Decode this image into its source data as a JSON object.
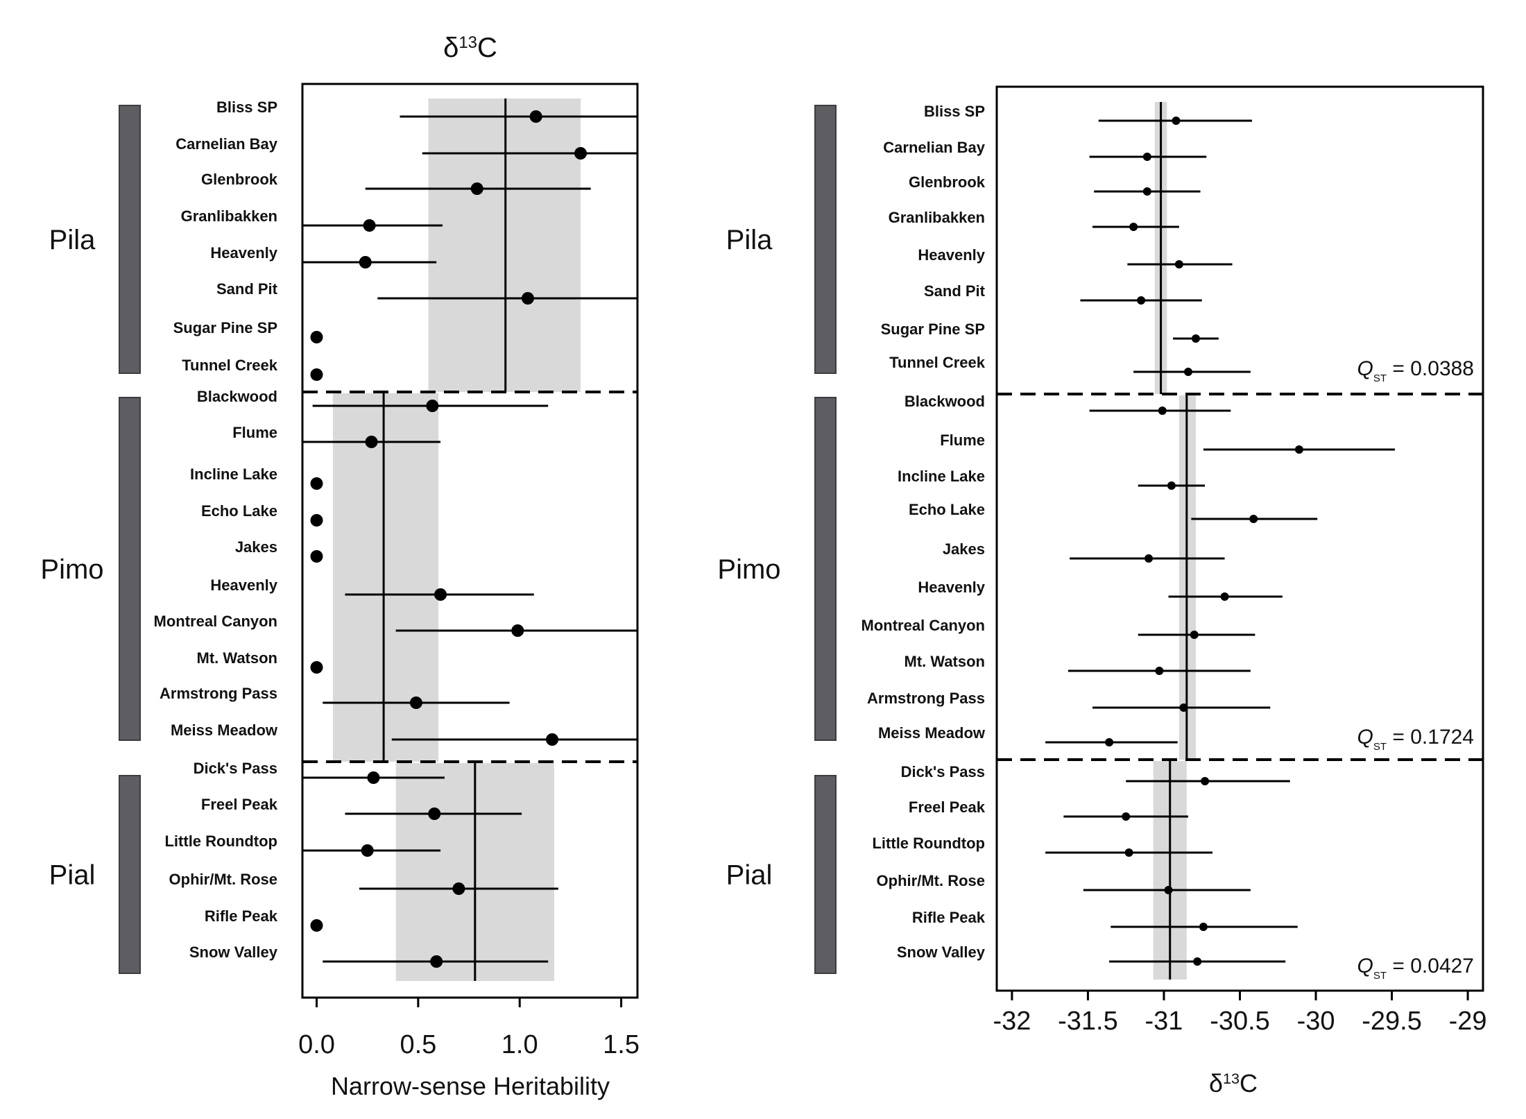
{
  "chart_data": [
    {
      "type": "scatter",
      "title": "δ13C",
      "title_main": "δ",
      "title_sup": "13",
      "title_tail": "C",
      "xlabel": "Narrow-sense Heritability",
      "xlim": [
        -0.07,
        1.58
      ],
      "xticks": [
        0.0,
        0.5,
        1.0,
        1.5
      ],
      "xtick_labels": [
        "0.0",
        "0.5",
        "1.0",
        "1.5"
      ],
      "groups": [
        {
          "name": "Pila",
          "mean": 0.93,
          "band": [
            0.55,
            1.3
          ],
          "sites": [
            {
              "label": "Bliss SP",
              "value": 1.08,
              "lo": 0.41,
              "hi": 1.58
            },
            {
              "label": "Carnelian Bay",
              "value": 1.3,
              "lo": 0.52,
              "hi": 1.58
            },
            {
              "label": "Glenbrook",
              "value": 0.79,
              "lo": 0.24,
              "hi": 1.35
            },
            {
              "label": "Granlibakken",
              "value": 0.26,
              "lo": -0.07,
              "hi": 0.62
            },
            {
              "label": "Heavenly",
              "value": 0.24,
              "lo": -0.07,
              "hi": 0.59
            },
            {
              "label": "Sand Pit",
              "value": 1.04,
              "lo": 0.3,
              "hi": 1.58
            },
            {
              "label": "Sugar Pine SP",
              "value": 0.0
            },
            {
              "label": "Tunnel Creek",
              "value": 0.0
            }
          ]
        },
        {
          "name": "Pimo",
          "mean": 0.33,
          "band": [
            0.08,
            0.6
          ],
          "sites": [
            {
              "label": "Blackwood",
              "value": 0.57,
              "lo": -0.02,
              "hi": 1.14
            },
            {
              "label": "Flume",
              "value": 0.27,
              "lo": -0.07,
              "hi": 0.61
            },
            {
              "label": "Incline Lake",
              "value": 0.0
            },
            {
              "label": "Echo Lake",
              "value": 0.0
            },
            {
              "label": "Jakes",
              "value": 0.0
            },
            {
              "label": "Heavenly",
              "value": 0.61,
              "lo": 0.14,
              "hi": 1.07
            },
            {
              "label": "Montreal Canyon",
              "value": 0.99,
              "lo": 0.39,
              "hi": 1.58
            },
            {
              "label": "Mt. Watson",
              "value": 0.0
            },
            {
              "label": "Armstrong Pass",
              "value": 0.49,
              "lo": 0.03,
              "hi": 0.95
            },
            {
              "label": "Meiss Meadow",
              "value": 1.16,
              "lo": 0.37,
              "hi": 1.58
            }
          ]
        },
        {
          "name": "Pial",
          "mean": 0.78,
          "band": [
            0.39,
            1.17
          ],
          "sites": [
            {
              "label": "Dick's Pass",
              "value": 0.28,
              "lo": -0.07,
              "hi": 0.63
            },
            {
              "label": "Freel Peak",
              "value": 0.58,
              "lo": 0.14,
              "hi": 1.01
            },
            {
              "label": "Little Roundtop",
              "value": 0.25,
              "lo": -0.07,
              "hi": 0.61
            },
            {
              "label": "Ophir/Mt. Rose",
              "value": 0.7,
              "lo": 0.21,
              "hi": 1.19
            },
            {
              "label": "Rifle Peak",
              "value": 0.0
            },
            {
              "label": "Snow Valley",
              "value": 0.59,
              "lo": 0.03,
              "hi": 1.14
            }
          ]
        }
      ]
    },
    {
      "type": "scatter",
      "xlabel": "δ13C",
      "xlabel_main": "δ",
      "xlabel_sup": "13",
      "xlabel_tail": "C",
      "xlim": [
        -32.1,
        -28.9
      ],
      "xticks": [
        -32,
        -31.5,
        -31,
        -30.5,
        -30,
        -29.5,
        -29
      ],
      "xtick_labels": [
        "-32",
        "-31.5",
        "-31",
        "-30.5",
        "-30",
        "-29.5",
        "-29"
      ],
      "groups": [
        {
          "name": "Pila",
          "mean": -31.02,
          "band": [
            -31.06,
            -30.98
          ],
          "qst_label": "Q",
          "qst_sub": "ST",
          "qst_text": " = 0.0388",
          "sites": [
            {
              "label": "Bliss SP",
              "value": -30.92,
              "lo": -31.43,
              "hi": -30.42
            },
            {
              "label": "Carnelian Bay",
              "value": -31.11,
              "lo": -31.49,
              "hi": -30.72
            },
            {
              "label": "Glenbrook",
              "value": -31.11,
              "lo": -31.46,
              "hi": -30.76
            },
            {
              "label": "Granlibakken",
              "value": -31.2,
              "lo": -31.47,
              "hi": -30.9
            },
            {
              "label": "Heavenly",
              "value": -30.9,
              "lo": -31.24,
              "hi": -30.55
            },
            {
              "label": "Sand Pit",
              "value": -31.15,
              "lo": -31.55,
              "hi": -30.75
            },
            {
              "label": "Sugar Pine SP",
              "value": -30.79,
              "lo": -30.94,
              "hi": -30.64
            },
            {
              "label": "Tunnel Creek",
              "value": -30.84,
              "lo": -31.2,
              "hi": -30.43
            }
          ]
        },
        {
          "name": "Pimo",
          "mean": -30.85,
          "band": [
            -30.9,
            -30.79
          ],
          "qst_label": "Q",
          "qst_sub": "ST",
          "qst_text": " = 0.1724",
          "sites": [
            {
              "label": "Blackwood",
              "value": -31.01,
              "lo": -31.49,
              "hi": -30.56
            },
            {
              "label": "Flume",
              "value": -30.11,
              "lo": -30.74,
              "hi": -29.48
            },
            {
              "label": "Incline Lake",
              "value": -30.95,
              "lo": -31.17,
              "hi": -30.73
            },
            {
              "label": "Echo Lake",
              "value": -30.41,
              "lo": -30.82,
              "hi": -29.99
            },
            {
              "label": "Jakes",
              "value": -31.1,
              "lo": -31.62,
              "hi": -30.6
            },
            {
              "label": "Heavenly",
              "value": -30.6,
              "lo": -30.97,
              "hi": -30.22
            },
            {
              "label": "Montreal Canyon",
              "value": -30.8,
              "lo": -31.17,
              "hi": -30.4
            },
            {
              "label": "Mt. Watson",
              "value": -31.03,
              "lo": -31.63,
              "hi": -30.43
            },
            {
              "label": "Armstrong Pass",
              "value": -30.87,
              "lo": -31.47,
              "hi": -30.3
            },
            {
              "label": "Meiss Meadow",
              "value": -31.36,
              "lo": -31.78,
              "hi": -30.91
            }
          ]
        },
        {
          "name": "Pial",
          "mean": -30.96,
          "band": [
            -31.07,
            -30.85
          ],
          "qst_label": "Q",
          "qst_sub": "ST",
          "qst_text": " = 0.0427",
          "sites": [
            {
              "label": "Dick's Pass",
              "value": -30.73,
              "lo": -31.25,
              "hi": -30.17
            },
            {
              "label": "Freel Peak",
              "value": -31.25,
              "lo": -31.66,
              "hi": -30.84
            },
            {
              "label": "Little Roundtop",
              "value": -31.23,
              "lo": -31.78,
              "hi": -30.68
            },
            {
              "label": "Ophir/Mt. Rose",
              "value": -30.97,
              "lo": -31.53,
              "hi": -30.43
            },
            {
              "label": "Rifle Peak",
              "value": -30.74,
              "lo": -31.35,
              "hi": -30.12
            },
            {
              "label": "Snow Valley",
              "value": -30.78,
              "lo": -31.36,
              "hi": -30.2
            }
          ]
        }
      ]
    }
  ]
}
